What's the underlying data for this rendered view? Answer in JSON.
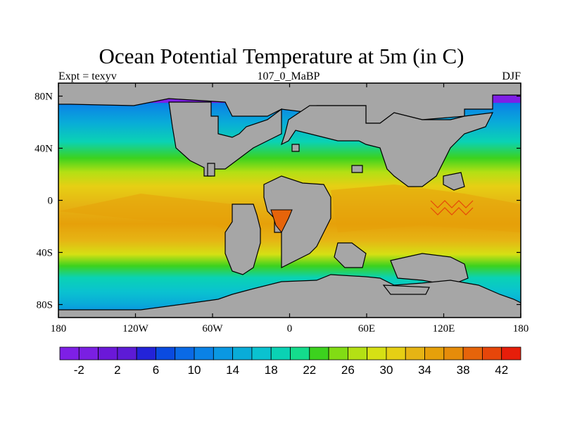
{
  "title": "Ocean Potential Temperature at 5m (in C)",
  "subtitle_left": "Expt = texyv",
  "subtitle_center": "107_0_MaBP",
  "subtitle_right": "DJF",
  "map": {
    "projection": "cylindrical-equidistant",
    "lon_range": [
      -180,
      180
    ],
    "lat_range": [
      -90,
      90
    ],
    "x_ticks": [
      "180",
      "120W",
      "60W",
      "0",
      "60E",
      "120E",
      "180"
    ],
    "x_tick_values": [
      -180,
      -120,
      -60,
      0,
      60,
      120,
      180
    ],
    "y_ticks": [
      "80N",
      "40N",
      "0",
      "40S",
      "80S"
    ],
    "y_tick_values": [
      80,
      40,
      0,
      -40,
      -80
    ],
    "land_color": "#a6a6a6",
    "coastline_color": "#000000"
  },
  "colorbar": {
    "labels": [
      "-2",
      "2",
      "6",
      "10",
      "14",
      "18",
      "22",
      "26",
      "30",
      "34",
      "38",
      "42"
    ],
    "label_values": [
      -2,
      2,
      6,
      10,
      14,
      18,
      22,
      26,
      30,
      34,
      38,
      42
    ],
    "colors": [
      "#7e1fe6",
      "#7a1fe2",
      "#6b18d8",
      "#5d1bd6",
      "#2323d8",
      "#0a4be0",
      "#0a6ae6",
      "#0a82e6",
      "#0a98e2",
      "#09acd8",
      "#0ac2d0",
      "#0ad2b4",
      "#14dc8c",
      "#3cd21e",
      "#82dc14",
      "#b4e014",
      "#d6e014",
      "#e6cf14",
      "#e6b414",
      "#e6a00a",
      "#e68c0a",
      "#e6640a",
      "#e6460a",
      "#e61e0a"
    ]
  },
  "chart_data": {
    "type": "heatmap",
    "title": "Ocean Potential Temperature at 5m (in C)",
    "variable": "Ocean Potential Temperature at 5m",
    "units": "C",
    "season": "DJF",
    "levels": [
      -2,
      0,
      2,
      4,
      6,
      8,
      10,
      12,
      14,
      16,
      18,
      20,
      22,
      24,
      26,
      28,
      30,
      32,
      34,
      36,
      38,
      40,
      42
    ],
    "x": "longitude (180 to 180)",
    "y": "latitude (80S to 80N)",
    "zonal_band_values": [
      {
        "lat": 85,
        "value": -1.5
      },
      {
        "lat": 70,
        "value": 4
      },
      {
        "lat": 60,
        "value": 10
      },
      {
        "lat": 50,
        "value": 14
      },
      {
        "lat": 40,
        "value": 19
      },
      {
        "lat": 30,
        "value": 24
      },
      {
        "lat": 20,
        "value": 27
      },
      {
        "lat": 10,
        "value": 29
      },
      {
        "lat": 0,
        "value": 31
      },
      {
        "lat": -10,
        "value": 33
      },
      {
        "lat": -20,
        "value": 33
      },
      {
        "lat": -30,
        "value": 29
      },
      {
        "lat": -40,
        "value": 25
      },
      {
        "lat": -50,
        "value": 20
      },
      {
        "lat": -60,
        "value": 16
      },
      {
        "lat": -70,
        "value": 12
      },
      {
        "lat": -80,
        "value": 9
      }
    ]
  }
}
